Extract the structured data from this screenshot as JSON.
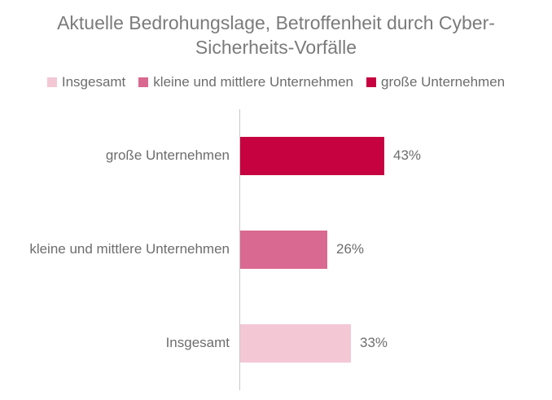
{
  "title": "Aktuelle Bedrohungslage, Betroffenheit durch Cyber-Sicherheits-Vorfälle",
  "colors": {
    "insgesamt": "#F4C7D5",
    "kmu": "#D96990",
    "grosse_unternehmen": "#C60340",
    "text_gray": "#6d6d6d",
    "title_gray": "#7b7b7b",
    "axis_gray": "#c9c9c9"
  },
  "legend": {
    "items": [
      {
        "label": "Insgesamt",
        "color": "#F4C7D5"
      },
      {
        "label": "kleine und mittlere Unternehmen",
        "color": "#D96990"
      },
      {
        "label": "große Unternehmen",
        "color": "#C60340"
      }
    ]
  },
  "chart_data": {
    "type": "bar",
    "orientation": "horizontal",
    "title": "Aktuelle Bedrohungslage, Betroffenheit durch Cyber-Sicherheits-Vorfälle",
    "categories": [
      "große Unternehmen",
      "kleine und mittlere Unternehmen",
      "Insgesamt"
    ],
    "values": [
      43,
      26,
      33
    ],
    "value_labels": [
      "43%",
      "26%",
      "33%"
    ],
    "bar_colors": [
      "#C60340",
      "#D96990",
      "#F4C7D5"
    ],
    "unit": "%",
    "xlabel": "",
    "ylabel": "",
    "xlim": [
      0,
      86
    ],
    "grid": false,
    "legend_position": "top",
    "legend_entries": [
      "Insgesamt",
      "kleine und mittlere Unternehmen",
      "große Unternehmen"
    ]
  }
}
